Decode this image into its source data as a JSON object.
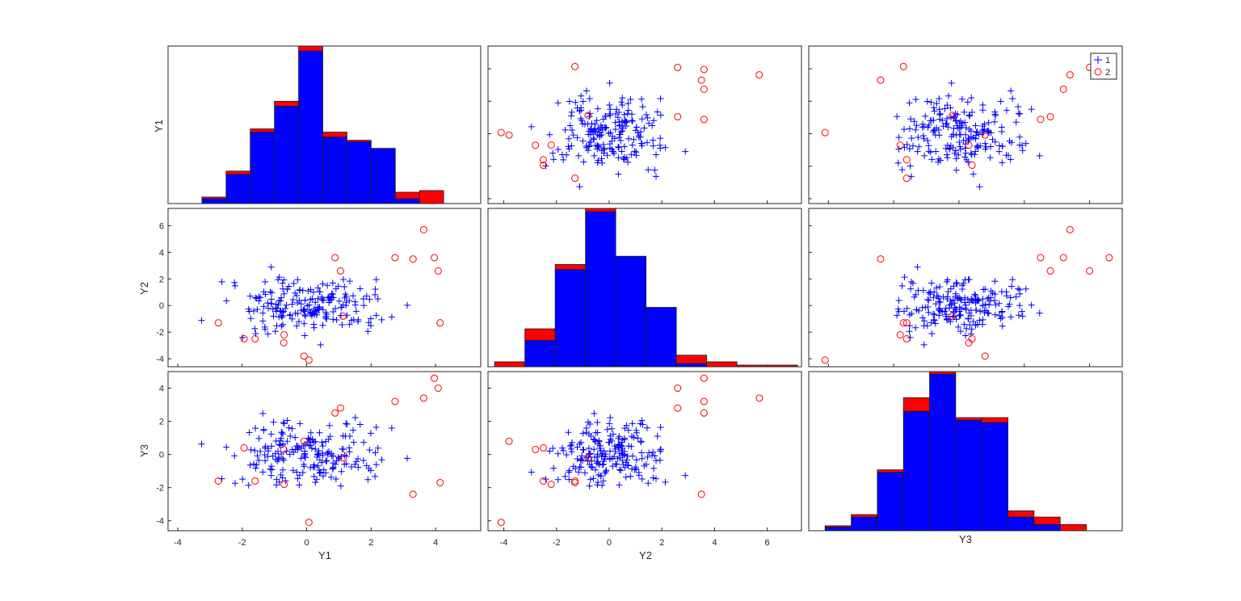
{
  "figure": {
    "labels": [
      "Y1",
      "Y2",
      "Y3"
    ],
    "legend": [
      {
        "label": "1",
        "marker": "plus",
        "color": "#0000ff"
      },
      {
        "label": "2",
        "marker": "circle",
        "color": "#ff0000"
      }
    ]
  },
  "chart_data": {
    "type": "scatter",
    "variables": [
      "Y1",
      "Y2",
      "Y3"
    ],
    "groups": [
      "1",
      "2"
    ],
    "colors": {
      "1": "#0000ff",
      "2": "#ff0000",
      "frame": "#262626"
    },
    "axes": {
      "Y1": {
        "lim": [
          -4.3,
          5.4
        ],
        "ticks": [
          -4,
          -2,
          0,
          2,
          4
        ]
      },
      "Y2": {
        "lim": [
          -4.6,
          7.3
        ],
        "ticks": [
          -4,
          -2,
          0,
          2,
          4,
          6
        ]
      },
      "Y3": {
        "lim": [
          -4.6,
          5.0
        ],
        "ticks": [
          -4,
          -2,
          0,
          2,
          4
        ]
      }
    },
    "histograms": {
      "Y1": {
        "edges": [
          -3.25,
          -2.5,
          -1.75,
          -1.0,
          -0.25,
          0.5,
          1.25,
          2.0,
          2.75,
          3.5,
          4.25
        ],
        "counts": {
          "1": [
            3,
            18,
            44,
            60,
            94,
            41,
            38,
            34,
            3,
            0
          ],
          "2": [
            1,
            2,
            2,
            3,
            3,
            3,
            1,
            0,
            4,
            8
          ]
        }
      },
      "Y2": {
        "edges": [
          -4.35,
          -3.2,
          -2.05,
          -0.9,
          0.25,
          1.4,
          2.55,
          3.7,
          4.85,
          6.0,
          7.15
        ],
        "counts": {
          "1": [
            0,
            16,
            59,
            94,
            67,
            36,
            2,
            0,
            0,
            0
          ],
          "2": [
            3,
            7,
            3,
            2,
            0,
            0,
            5,
            3,
            1,
            1
          ]
        }
      },
      "Y3": {
        "edges": [
          -4.1,
          -3.3,
          -2.5,
          -1.7,
          -0.9,
          -0.1,
          0.7,
          1.5,
          2.3,
          3.1,
          3.9
        ],
        "counts": {
          "1": [
            3,
            11,
            47,
            96,
            126,
            89,
            87,
            11,
            5,
            0
          ],
          "2": [
            1,
            2,
            2,
            11,
            2,
            2,
            4,
            5,
            6,
            5
          ]
        }
      }
    },
    "points": {
      "1": {
        "Y1": [
          -0.28,
          -0.36,
          0.91,
          1.95,
          -0.79,
          -0.09,
          0.93,
          -2.24,
          0.13,
          -0.86,
          -0.23,
          -0.31,
          -1.1,
          -0.17,
          -1.1,
          0.43,
          -0.74,
          0.78,
          2.13,
          0.32,
          1.32,
          0.08,
          0.62,
          1.93,
          -0.12,
          0.12,
          1.14,
          -0.93,
          -1.48,
          0.27,
          1.13,
          0.51,
          -0.79,
          0.82,
          -0.74,
          -0.51,
          0.83,
          1.34,
          2.21,
          1.99,
          0.71,
          0.59,
          -1.29,
          0.35,
          0.12,
          1.99,
          0.62,
          0.08,
          0.66,
          -0.8,
          1.54,
          1.22,
          0.02,
          -0.06,
          0.27,
          0.68,
          -1.05,
          0.76,
          1.6,
          0.49,
          -1.58,
          -0.78,
          -1.19,
          -1.09,
          1.33,
          -0.08,
          1.86,
          0.59,
          0.73,
          -1.64,
          -0.45,
          -0.6,
          -1.29,
          -0.05,
          -0.74,
          0.27,
          1.59,
          -1.8,
          0.12,
          -1.2,
          -0.66,
          -1.44,
          0.77,
          1.51,
          0.64,
          -0.17,
          0.4,
          -2.63,
          -0.75,
          -0.96,
          2.16,
          1.39,
          -0.07,
          -0.7,
          2.33,
          -0.21,
          -0.77,
          -0.05,
          1.06,
          -1.28,
          -0.1,
          0.21,
          1.9,
          -1.33,
          -0.91,
          0.47,
          -0.52,
          1.5,
          -0.35,
          -0.95,
          -1.55,
          -0.28,
          0.24,
          0.6,
          1.07,
          0.69,
          1.44,
          -0.6,
          -0.82,
          -2.49,
          -1.73,
          -1.3,
          -0.22,
          -0.24,
          1.25,
          1.2,
          1.23,
          0.4,
          -0.74,
          1.08,
          0.5,
          0.81,
          -0.81,
          0.18,
          0.98,
          -0.89,
          -1.59,
          0.38,
          1.76,
          1.46,
          -0.85,
          0.5,
          -1.03,
          1.23,
          1.01,
          -0.55,
          -1.48,
          -0.71,
          -1.36,
          0.16,
          3.12,
          0.53,
          -1.61,
          -1.13,
          0.82,
          -0.06,
          1.1,
          0.18,
          -1.33,
          -1.99,
          0.39,
          0.31,
          0.23,
          -0.31,
          -0.85,
          1.77,
          -0.97,
          -1.75,
          0.23,
          -1.78,
          0.34,
          0.05,
          0.81,
          0.41,
          1.66,
          2.16,
          0.47,
          -0.74,
          -0.72,
          0.12,
          -0.88,
          0.37,
          -1.53,
          1.17,
          -1.21,
          -0.29,
          -0.04,
          -1.08,
          2.64,
          -3.26,
          0.35,
          0.22,
          -0.4,
          -2.22,
          1.18,
          -0.45,
          -0.94,
          -1.09,
          -0.63,
          -0.06,
          2.12,
          0.89,
          -0.42,
          -1.36
        ],
        "Y2": [
          -0.6,
          0.93,
          1.25,
          0.46,
          0.58,
          -0.36,
          -1.08,
          1.73,
          -0.51,
          -0.86,
          0.38,
          -1.53,
          2.89,
          -0.36,
          0.15,
          -2.95,
          1.25,
          0.89,
          1.23,
          -0.55,
          0.37,
          0.05,
          -1.01,
          -1.28,
          1.13,
          -0.64,
          1.96,
          -1.52,
          0.35,
          -0.43,
          0.04,
          -0.31,
          -0.77,
          -1.04,
          -1.43,
          -0.69,
          0.6,
          1.83,
          0.5,
          -1.51,
          0.66,
          -0.53,
          -1.78,
          0.52,
          -0.55,
          -0.99,
          -0.66,
          -0.34,
          0.58,
          -0.4,
          -0.43,
          0.01,
          -0.02,
          -2.26,
          -0.38,
          0.58,
          -0.28,
          0.64,
          -1.07,
          0.39,
          -2.11,
          -1.55,
          -0.2,
          0.13,
          -1.42,
          -1.36,
          0.72,
          -0.92,
          0.38,
          -0.41,
          -1.0,
          1.24,
          1.78,
          0.41,
          -0.43,
          0.24,
          -1.21,
          -0.27,
          1.2,
          -2.14,
          -0.22,
          0.58,
          0.49,
          0.04,
          1.51,
          0.12,
          1.04,
          1.78,
          1.67,
          -0.18,
          1.95,
          -1.12,
          -0.29,
          0.88,
          -1.07,
          1.18,
          -0.87,
          0.39,
          -0.75,
          0.84,
          -0.35,
          1.01,
          -1.94,
          -0.07,
          -0.21,
          0.64,
          -0.74,
          0.28,
          -0.58,
          0.1,
          0.54,
          1.94,
          -0.68,
          -0.81,
          -0.15,
          0.23,
          0.73,
          1.22,
          -0.39,
          0.35,
          -0.97,
          -1.62,
          1.13,
          -1.21,
          -0.73,
          0.86,
          0.7,
          -0.16,
          -0.77,
          -0.13,
          1.63,
          0.86,
          0.34,
          0.5,
          1.46,
          1.94,
          0.59,
          -0.26,
          0.5,
          -1.07,
          0.37,
          -1.48,
          -0.8,
          0.25,
          0.33,
          1.44,
          0.67,
          1.93,
          -1.16,
          -0.77,
          0.02,
          0.4,
          -1.74,
          1.02,
          -0.47,
          -0.44,
          -1.44,
          -0.59,
          1.03,
          -2.41,
          -0.11,
          -0.71,
          -1.67,
          0.74,
          2.13,
          0.01,
          -1.94,
          0.71,
          -0.25,
          -0.44,
          -0.13,
          1.09,
          1.69,
          1.04,
          1.27,
          -0.74,
          0.49,
          -0.52,
          -0.45,
          0.45,
          0.03,
          -0.32,
          -0.29,
          1.41,
          0.19,
          0.21,
          -0.79,
          0.97,
          -0.86,
          -1.12,
          1.33,
          -1.41,
          1.66,
          1.48,
          0.57,
          0.1,
          -0.45,
          0.48,
          0.03,
          -0.71,
          0.81,
          -0.22,
          0.44,
          -0.57,
          -0.32,
          -0.46
        ],
        "Y3": [
          -1.45,
          1.03,
          -1.48,
          0.27,
          0.97,
          -0.6,
          -0.37,
          -0.08,
          1.31,
          -0.18,
          -1.84,
          -1.07,
          -1.27,
          0.37,
          1.23,
          -1.07,
          -0.25,
          -0.1,
          0.1,
          -0.16,
          0.4,
          0.92,
          -0.37,
          -0.85,
          -1.09,
          -0.79,
          0.31,
          -1.51,
          0.96,
          -1.68,
          1.12,
          -1.3,
          0.03,
          -0.08,
          0.57,
          1.11,
          -0.78,
          1.1,
          0.38,
          -0.97,
          1.75,
          0.78,
          0.39,
          -0.03,
          0.88,
          1.28,
          -0.39,
          0.53,
          0.01,
          -1.23,
          -0.43,
          1.86,
          0.73,
          0.2,
          0.78,
          0.91,
          -0.1,
          -1.37,
          -0.77,
          0.07,
          -0.83,
          1.33,
          0.21,
          -0.71,
          0.16,
          -0.72,
          -0.68,
          -1.11,
          1.09,
          -0.57,
          0.29,
          2.05,
          -0.37,
          -0.18,
          0.65,
          0.32,
          -0.26,
          -1.86,
          0.75,
          0.37,
          -1.59,
          0.18,
          0.05,
          2.22,
          0.1,
          -0.23,
          1.31,
          -1.46,
          -1.41,
          -0.29,
          1.64,
          -0.75,
          -0.08,
          1.86,
          -0.32,
          1.86,
          1.33,
          0.61,
          -1.9,
          0.48,
          0.52,
          -0.76,
          -1.52,
          1.51,
          -0.4,
          -0.48,
          0.01,
          -0.6,
          0.31,
          0.81,
          -0.62,
          0.29,
          -0.75,
          -0.4,
          -0.13,
          0.18,
          1.46,
          0.8,
          0.83,
          0.44,
          0.28,
          -0.02,
          -1.25,
          0.44,
          1.83,
          1.1,
          -0.11,
          -1.12,
          1.24,
          -1.03,
          -0.06,
          -0.88,
          0.55,
          0.87,
          -0.16,
          0.19,
          1.58,
          0.07,
          -0.36,
          0.73,
          0.59,
          0.51,
          1.95,
          -0.57,
          -0.25,
          1.61,
          -0.35,
          -0.35,
          -1.06,
          0.37,
          -0.23,
          -0.92,
          0.23,
          -0.87,
          -0.51,
          0.02,
          0.33,
          0.91,
          1.45,
          -1.49,
          -0.95,
          -1.51,
          -1.33,
          0.51,
          -1.67,
          0.73,
          0.05,
          -0.64,
          -0.62,
          1.32,
          0.02,
          0.98,
          -0.84,
          -0.33,
          1.81,
          -0.61,
          0.73,
          -0.93,
          1.93,
          0.56,
          -0.28,
          0.22,
          -0.08,
          -0.59,
          -0.13,
          0.51,
          -0.17,
          -0.92,
          1.59,
          0.63,
          -0.69,
          0.72,
          0.14,
          -1.74,
          -0.05,
          1.55,
          -1.84,
          0.5,
          0.2,
          0.05,
          -1.32,
          -0.59,
          -0.96,
          2.47,
          -1.3,
          -0.17
        ]
      },
      "2": {
        "Y1": [
          3.3,
          4.14,
          2.74,
          3.96,
          4.08,
          0.88,
          1.05,
          -2.74,
          3.63,
          -0.7,
          -1.6,
          1.13,
          -1.94,
          -0.08,
          -0.71,
          0.07
        ],
        "Y2": [
          3.5,
          -1.3,
          3.6,
          3.6,
          2.6,
          3.6,
          2.6,
          -1.3,
          5.7,
          -2.2,
          -2.5,
          -0.8,
          -2.5,
          -3.8,
          -2.8,
          -4.1
        ],
        "Y3": [
          -2.4,
          -1.7,
          3.2,
          4.6,
          4.0,
          2.5,
          2.8,
          -1.6,
          3.4,
          -1.8,
          -1.6,
          -0.2,
          0.4,
          0.8,
          0.3,
          -4.1
        ]
      }
    }
  }
}
